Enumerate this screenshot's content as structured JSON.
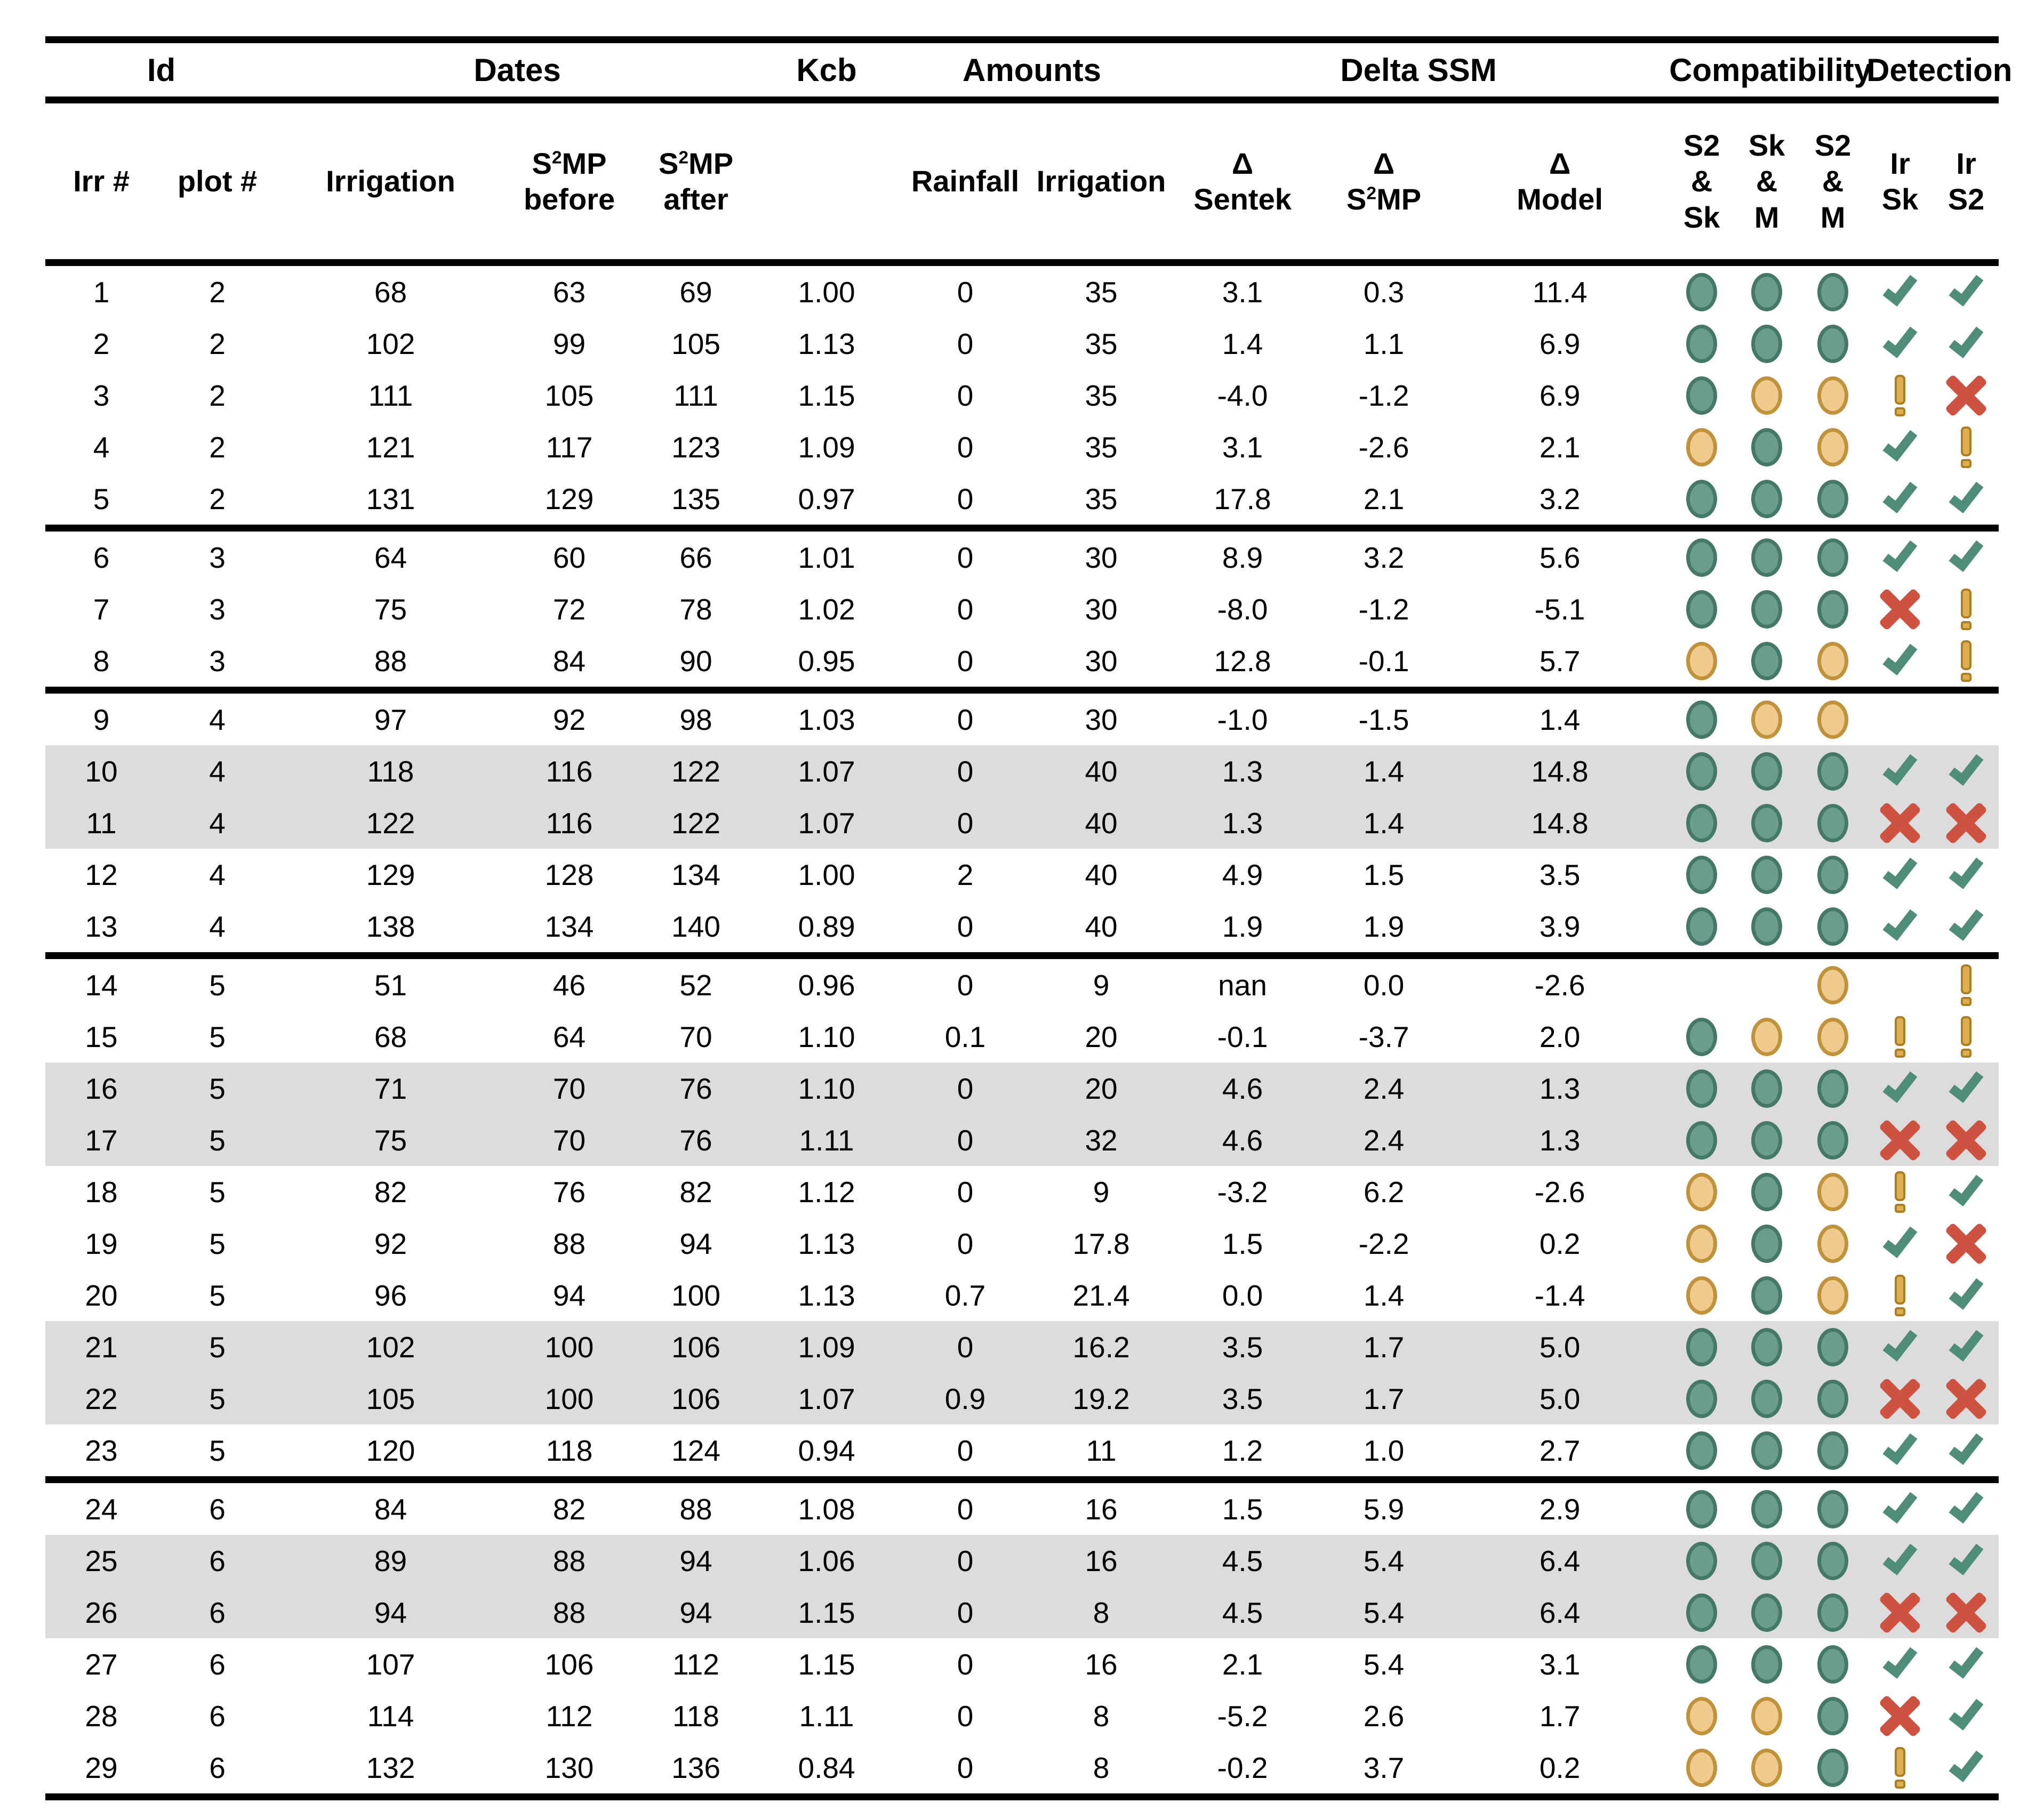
{
  "chart_data": {
    "type": "table",
    "title": "Irrigation events: dates, amounts, delta SSM, compatibility and detection",
    "group_headers": [
      {
        "label": "Id",
        "span": 2
      },
      {
        "label": "Dates",
        "span": 3
      },
      {
        "label": "Kcb",
        "span": 1
      },
      {
        "label": "Amounts",
        "span": 2
      },
      {
        "label": "Delta SSM",
        "span": 3
      },
      {
        "label": "Compatibility",
        "span": 3
      },
      {
        "label": "Detection",
        "span": 2
      }
    ],
    "sub_headers": [
      "Irr #",
      "plot #",
      "Irrigation",
      "S^2MP\nbefore",
      "S^2MP\nafter",
      "",
      "Rainfall",
      "Irrigation",
      "Δ\nSentek",
      "Δ\nS^2MP",
      "Δ\nModel",
      "S2\n&\nSk",
      "Sk\n&\nM",
      "S2\n&\nM",
      "Ir\nSk",
      "Ir\nS2"
    ],
    "column_keys": [
      "irr-number",
      "plot-number",
      "irrigation-date",
      "s2mp-before",
      "s2mp-after",
      "kcb",
      "rainfall",
      "irrigation-amount",
      "delta-sentek",
      "delta-s2mp",
      "delta-model",
      "compat-s2-sk",
      "compat-sk-m",
      "compat-s2-m",
      "detect-ir-sk",
      "detect-ir-s2"
    ],
    "icon_names": {
      "green": "compat-ok-circle-icon",
      "yellow": "compat-warn-circle-icon",
      "check": "detected-check-icon",
      "cross": "not-detected-cross-icon",
      "warn": "uncertain-exclamation-icon"
    },
    "colors": {
      "green_fill": "#6b9d8b",
      "green_edge": "#44796a",
      "yellow_fill": "#eeca8c",
      "yellow_edge": "#c0923a",
      "check": "#4e8d76",
      "cross": "#cd5240",
      "warn_fill": "#dfad52",
      "warn_edge": "#a97f22",
      "row_shade": "#dcdcdc",
      "rule": "#000000"
    },
    "rows": [
      {
        "cells": [
          "1",
          "2",
          "68",
          "63",
          "69",
          "1.00",
          "0",
          "35",
          "3.1",
          "0.3",
          "11.4"
        ],
        "compat": [
          "green",
          "green",
          "green"
        ],
        "detect": [
          "check",
          "check"
        ],
        "shaded": false,
        "sep_after": false
      },
      {
        "cells": [
          "2",
          "2",
          "102",
          "99",
          "105",
          "1.13",
          "0",
          "35",
          "1.4",
          "1.1",
          "6.9"
        ],
        "compat": [
          "green",
          "green",
          "green"
        ],
        "detect": [
          "check",
          "check"
        ],
        "shaded": false,
        "sep_after": false
      },
      {
        "cells": [
          "3",
          "2",
          "111",
          "105",
          "111",
          "1.15",
          "0",
          "35",
          "-4.0",
          "-1.2",
          "6.9"
        ],
        "compat": [
          "green",
          "yellow",
          "yellow"
        ],
        "detect": [
          "warn",
          "cross"
        ],
        "shaded": false,
        "sep_after": false
      },
      {
        "cells": [
          "4",
          "2",
          "121",
          "117",
          "123",
          "1.09",
          "0",
          "35",
          "3.1",
          "-2.6",
          "2.1"
        ],
        "compat": [
          "yellow",
          "green",
          "yellow"
        ],
        "detect": [
          "check",
          "warn"
        ],
        "shaded": false,
        "sep_after": false
      },
      {
        "cells": [
          "5",
          "2",
          "131",
          "129",
          "135",
          "0.97",
          "0",
          "35",
          "17.8",
          "2.1",
          "3.2"
        ],
        "compat": [
          "green",
          "green",
          "green"
        ],
        "detect": [
          "check",
          "check"
        ],
        "shaded": false,
        "sep_after": true
      },
      {
        "cells": [
          "6",
          "3",
          "64",
          "60",
          "66",
          "1.01",
          "0",
          "30",
          "8.9",
          "3.2",
          "5.6"
        ],
        "compat": [
          "green",
          "green",
          "green"
        ],
        "detect": [
          "check",
          "check"
        ],
        "shaded": false,
        "sep_after": false
      },
      {
        "cells": [
          "7",
          "3",
          "75",
          "72",
          "78",
          "1.02",
          "0",
          "30",
          "-8.0",
          "-1.2",
          "-5.1"
        ],
        "compat": [
          "green",
          "green",
          "green"
        ],
        "detect": [
          "cross",
          "warn"
        ],
        "shaded": false,
        "sep_after": false
      },
      {
        "cells": [
          "8",
          "3",
          "88",
          "84",
          "90",
          "0.95",
          "0",
          "30",
          "12.8",
          "-0.1",
          "5.7"
        ],
        "compat": [
          "yellow",
          "green",
          "yellow"
        ],
        "detect": [
          "check",
          "warn"
        ],
        "shaded": false,
        "sep_after": true
      },
      {
        "cells": [
          "9",
          "4",
          "97",
          "92",
          "98",
          "1.03",
          "0",
          "30",
          "-1.0",
          "-1.5",
          "1.4"
        ],
        "compat": [
          "green",
          "yellow",
          "yellow"
        ],
        "detect": [
          "none",
          "none"
        ],
        "shaded": false,
        "sep_after": false
      },
      {
        "cells": [
          "10",
          "4",
          "118",
          "116",
          "122",
          "1.07",
          "0",
          "40",
          "1.3",
          "1.4",
          "14.8"
        ],
        "compat": [
          "green",
          "green",
          "green"
        ],
        "detect": [
          "check",
          "check"
        ],
        "shaded": true,
        "sep_after": false
      },
      {
        "cells": [
          "11",
          "4",
          "122",
          "116",
          "122",
          "1.07",
          "0",
          "40",
          "1.3",
          "1.4",
          "14.8"
        ],
        "compat": [
          "green",
          "green",
          "green"
        ],
        "detect": [
          "cross",
          "cross"
        ],
        "shaded": true,
        "sep_after": false
      },
      {
        "cells": [
          "12",
          "4",
          "129",
          "128",
          "134",
          "1.00",
          "2",
          "40",
          "4.9",
          "1.5",
          "3.5"
        ],
        "compat": [
          "green",
          "green",
          "green"
        ],
        "detect": [
          "check",
          "check"
        ],
        "shaded": false,
        "sep_after": false
      },
      {
        "cells": [
          "13",
          "4",
          "138",
          "134",
          "140",
          "0.89",
          "0",
          "40",
          "1.9",
          "1.9",
          "3.9"
        ],
        "compat": [
          "green",
          "green",
          "green"
        ],
        "detect": [
          "check",
          "check"
        ],
        "shaded": false,
        "sep_after": true
      },
      {
        "cells": [
          "14",
          "5",
          "51",
          "46",
          "52",
          "0.96",
          "0",
          "9",
          "nan",
          "0.0",
          "-2.6"
        ],
        "compat": [
          "none",
          "none",
          "yellow"
        ],
        "detect": [
          "none",
          "warn"
        ],
        "shaded": false,
        "sep_after": false
      },
      {
        "cells": [
          "15",
          "5",
          "68",
          "64",
          "70",
          "1.10",
          "0.1",
          "20",
          "-0.1",
          "-3.7",
          "2.0"
        ],
        "compat": [
          "green",
          "yellow",
          "yellow"
        ],
        "detect": [
          "warn",
          "warn"
        ],
        "shaded": false,
        "sep_after": false
      },
      {
        "cells": [
          "16",
          "5",
          "71",
          "70",
          "76",
          "1.10",
          "0",
          "20",
          "4.6",
          "2.4",
          "1.3"
        ],
        "compat": [
          "green",
          "green",
          "green"
        ],
        "detect": [
          "check",
          "check"
        ],
        "shaded": true,
        "sep_after": false
      },
      {
        "cells": [
          "17",
          "5",
          "75",
          "70",
          "76",
          "1.11",
          "0",
          "32",
          "4.6",
          "2.4",
          "1.3"
        ],
        "compat": [
          "green",
          "green",
          "green"
        ],
        "detect": [
          "cross",
          "cross"
        ],
        "shaded": true,
        "sep_after": false
      },
      {
        "cells": [
          "18",
          "5",
          "82",
          "76",
          "82",
          "1.12",
          "0",
          "9",
          "-3.2",
          "6.2",
          "-2.6"
        ],
        "compat": [
          "yellow",
          "green",
          "yellow"
        ],
        "detect": [
          "warn",
          "check"
        ],
        "shaded": false,
        "sep_after": false
      },
      {
        "cells": [
          "19",
          "5",
          "92",
          "88",
          "94",
          "1.13",
          "0",
          "17.8",
          "1.5",
          "-2.2",
          "0.2"
        ],
        "compat": [
          "yellow",
          "green",
          "yellow"
        ],
        "detect": [
          "check",
          "cross"
        ],
        "shaded": false,
        "sep_after": false
      },
      {
        "cells": [
          "20",
          "5",
          "96",
          "94",
          "100",
          "1.13",
          "0.7",
          "21.4",
          "0.0",
          "1.4",
          "-1.4"
        ],
        "compat": [
          "yellow",
          "green",
          "yellow"
        ],
        "detect": [
          "warn",
          "check"
        ],
        "shaded": false,
        "sep_after": false
      },
      {
        "cells": [
          "21",
          "5",
          "102",
          "100",
          "106",
          "1.09",
          "0",
          "16.2",
          "3.5",
          "1.7",
          "5.0"
        ],
        "compat": [
          "green",
          "green",
          "green"
        ],
        "detect": [
          "check",
          "check"
        ],
        "shaded": true,
        "sep_after": false
      },
      {
        "cells": [
          "22",
          "5",
          "105",
          "100",
          "106",
          "1.07",
          "0.9",
          "19.2",
          "3.5",
          "1.7",
          "5.0"
        ],
        "compat": [
          "green",
          "green",
          "green"
        ],
        "detect": [
          "cross",
          "cross"
        ],
        "shaded": true,
        "sep_after": false
      },
      {
        "cells": [
          "23",
          "5",
          "120",
          "118",
          "124",
          "0.94",
          "0",
          "11",
          "1.2",
          "1.0",
          "2.7"
        ],
        "compat": [
          "green",
          "green",
          "green"
        ],
        "detect": [
          "check",
          "check"
        ],
        "shaded": false,
        "sep_after": true
      },
      {
        "cells": [
          "24",
          "6",
          "84",
          "82",
          "88",
          "1.08",
          "0",
          "16",
          "1.5",
          "5.9",
          "2.9"
        ],
        "compat": [
          "green",
          "green",
          "green"
        ],
        "detect": [
          "check",
          "check"
        ],
        "shaded": false,
        "sep_after": false
      },
      {
        "cells": [
          "25",
          "6",
          "89",
          "88",
          "94",
          "1.06",
          "0",
          "16",
          "4.5",
          "5.4",
          "6.4"
        ],
        "compat": [
          "green",
          "green",
          "green"
        ],
        "detect": [
          "check",
          "check"
        ],
        "shaded": true,
        "sep_after": false
      },
      {
        "cells": [
          "26",
          "6",
          "94",
          "88",
          "94",
          "1.15",
          "0",
          "8",
          "4.5",
          "5.4",
          "6.4"
        ],
        "compat": [
          "green",
          "green",
          "green"
        ],
        "detect": [
          "cross",
          "cross"
        ],
        "shaded": true,
        "sep_after": false
      },
      {
        "cells": [
          "27",
          "6",
          "107",
          "106",
          "112",
          "1.15",
          "0",
          "16",
          "2.1",
          "5.4",
          "3.1"
        ],
        "compat": [
          "green",
          "green",
          "green"
        ],
        "detect": [
          "check",
          "check"
        ],
        "shaded": false,
        "sep_after": false
      },
      {
        "cells": [
          "28",
          "6",
          "114",
          "112",
          "118",
          "1.11",
          "0",
          "8",
          "-5.2",
          "2.6",
          "1.7"
        ],
        "compat": [
          "yellow",
          "yellow",
          "green"
        ],
        "detect": [
          "cross",
          "check"
        ],
        "shaded": false,
        "sep_after": false
      },
      {
        "cells": [
          "29",
          "6",
          "132",
          "130",
          "136",
          "0.84",
          "0",
          "8",
          "-0.2",
          "3.7",
          "0.2"
        ],
        "compat": [
          "yellow",
          "yellow",
          "green"
        ],
        "detect": [
          "warn",
          "check"
        ],
        "shaded": false,
        "sep_after": false
      }
    ]
  }
}
